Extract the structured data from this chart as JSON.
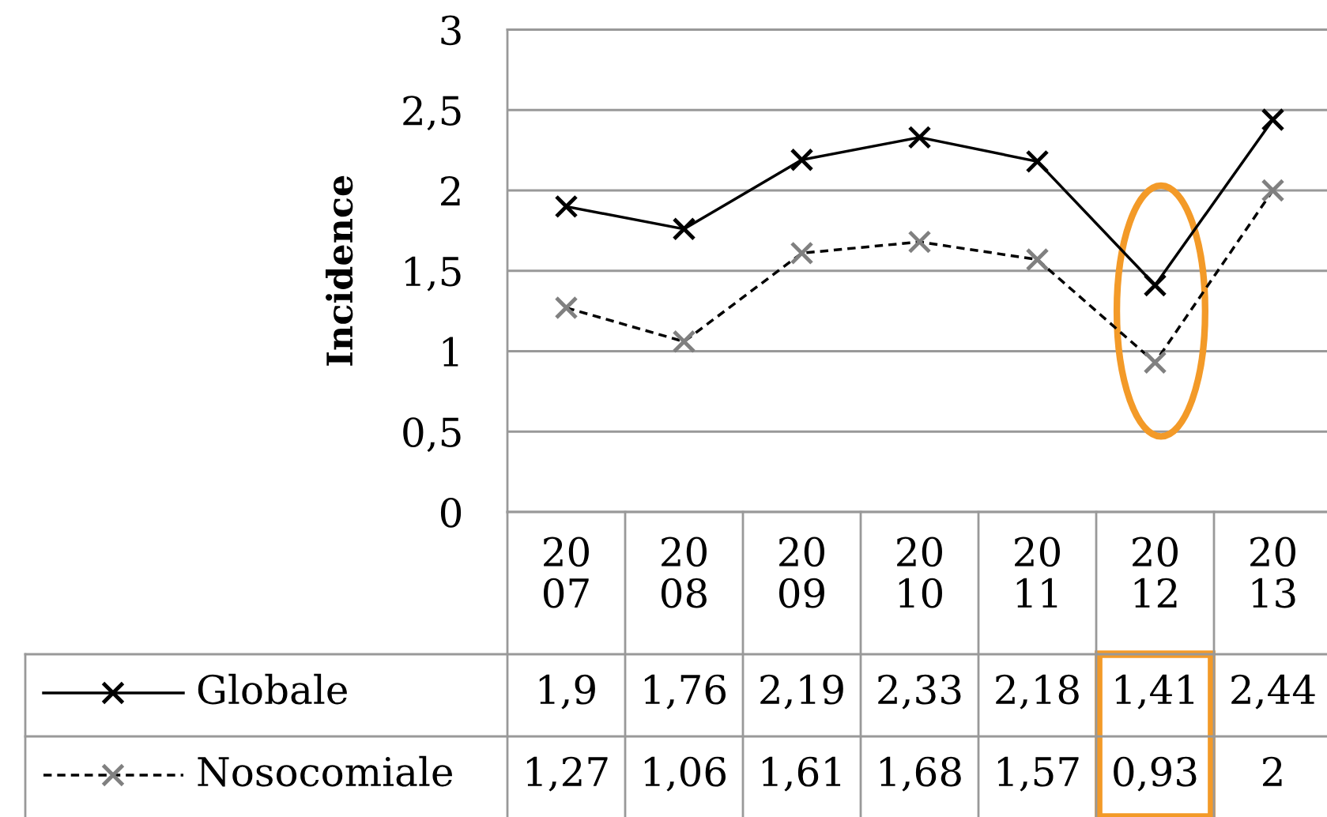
{
  "chart_data": {
    "type": "line",
    "ylabel": "Incidence",
    "categories": [
      "20\n07",
      "20\n08",
      "20\n09",
      "20\n10",
      "20\n11",
      "20\n12",
      "20\n13"
    ],
    "series": [
      {
        "name": "Globale",
        "color": "#000000",
        "line_style": "solid",
        "values": [
          1.9,
          1.76,
          2.19,
          2.33,
          2.18,
          1.41,
          2.44
        ],
        "value_labels": [
          "1,9",
          "1,76",
          "2,19",
          "2,33",
          "2,18",
          "1,41",
          "2,44"
        ]
      },
      {
        "name": "Nosocomiale",
        "color": "#808080",
        "line_style": "dashed",
        "values": [
          1.27,
          1.06,
          1.61,
          1.68,
          1.57,
          0.93,
          2
        ],
        "value_labels": [
          "1,27",
          "1,06",
          "1,61",
          "1,68",
          "1,57",
          "0,93",
          "2"
        ]
      }
    ],
    "ylim": [
      0,
      3
    ],
    "yticks": [
      0,
      {
        "value": 0.5,
        "label": "0,5"
      },
      1,
      {
        "value": 1.5,
        "label": "1,5"
      },
      2,
      {
        "value": 2.5,
        "label": "2,5"
      },
      3
    ],
    "grid": "y",
    "marker": "cross",
    "legend": "bottom"
  }
}
